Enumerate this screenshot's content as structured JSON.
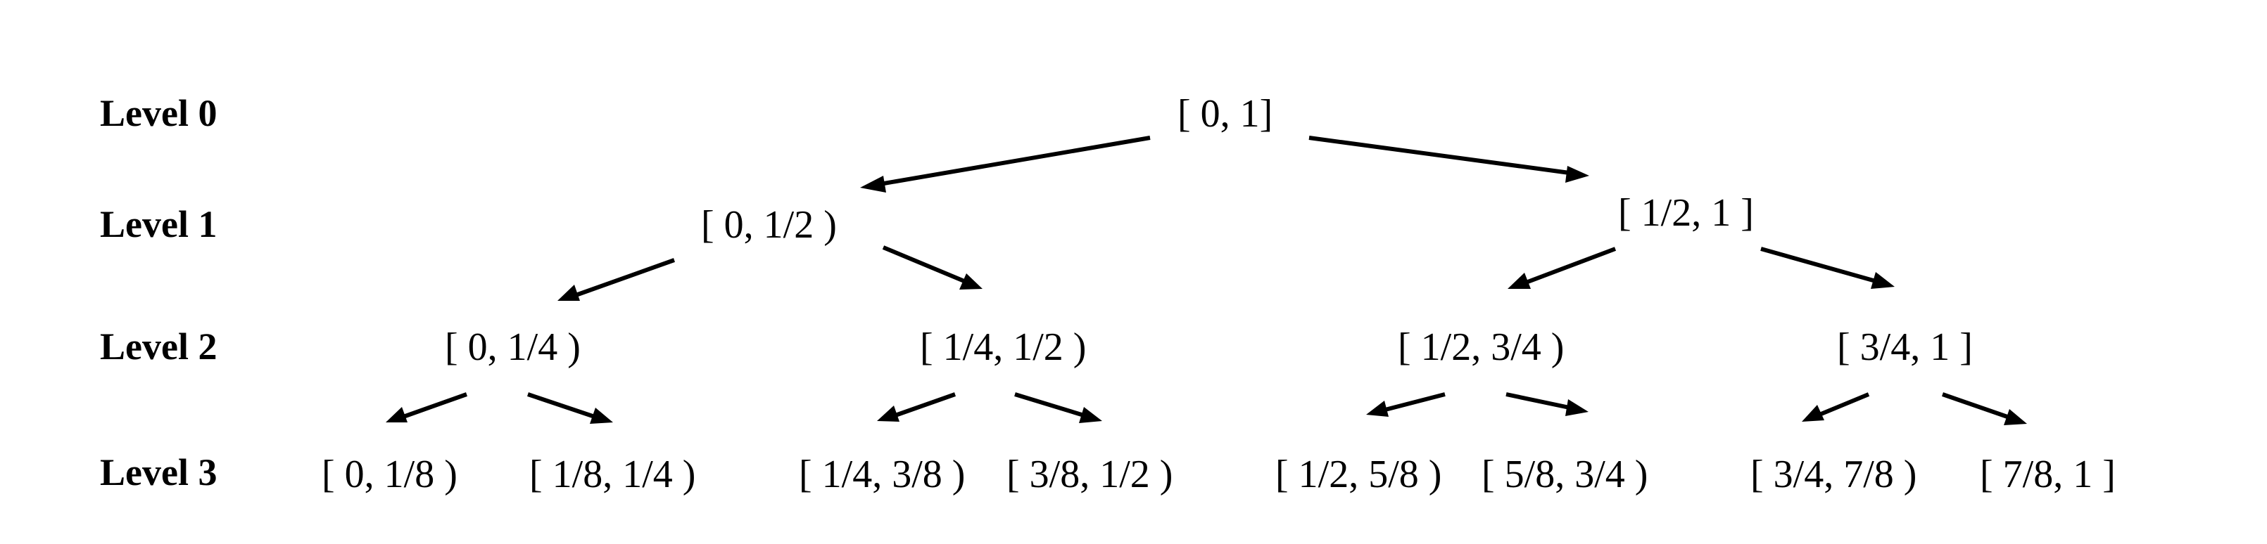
{
  "levels": [
    "Level 0",
    "Level 1",
    "Level 2",
    "Level 3"
  ],
  "nodes": [
    {
      "id": "n0",
      "level": 0,
      "label": "[ 0, 1]"
    },
    {
      "id": "n1a",
      "level": 1,
      "label": "[ 0, 1/2 )"
    },
    {
      "id": "n1b",
      "level": 1,
      "label": "[ 1/2, 1 ]"
    },
    {
      "id": "n2a",
      "level": 2,
      "label": "[ 0, 1/4 )"
    },
    {
      "id": "n2b",
      "level": 2,
      "label": "[ 1/4, 1/2 )"
    },
    {
      "id": "n2c",
      "level": 2,
      "label": "[ 1/2, 3/4 )"
    },
    {
      "id": "n2d",
      "level": 2,
      "label": "[ 3/4, 1 ]"
    },
    {
      "id": "n3a",
      "level": 3,
      "label": "[ 0, 1/8 )"
    },
    {
      "id": "n3b",
      "level": 3,
      "label": "[ 1/8, 1/4 )"
    },
    {
      "id": "n3c",
      "level": 3,
      "label": "[ 1/4, 3/8 )"
    },
    {
      "id": "n3d",
      "level": 3,
      "label": "[ 3/8, 1/2 )"
    },
    {
      "id": "n3e",
      "level": 3,
      "label": "[ 1/2, 5/8 )"
    },
    {
      "id": "n3f",
      "level": 3,
      "label": "[ 5/8, 3/4 )"
    },
    {
      "id": "n3g",
      "level": 3,
      "label": "[ 3/4, 7/8 )"
    },
    {
      "id": "n3h",
      "level": 3,
      "label": "[ 7/8, 1 ]"
    }
  ],
  "edges": [
    {
      "from": "n0",
      "to": "n1a"
    },
    {
      "from": "n0",
      "to": "n1b"
    },
    {
      "from": "n1a",
      "to": "n2a"
    },
    {
      "from": "n1a",
      "to": "n2b"
    },
    {
      "from": "n1b",
      "to": "n2c"
    },
    {
      "from": "n1b",
      "to": "n2d"
    },
    {
      "from": "n2a",
      "to": "n3a"
    },
    {
      "from": "n2a",
      "to": "n3b"
    },
    {
      "from": "n2b",
      "to": "n3c"
    },
    {
      "from": "n2b",
      "to": "n3d"
    },
    {
      "from": "n2c",
      "to": "n3e"
    },
    {
      "from": "n2c",
      "to": "n3f"
    },
    {
      "from": "n2d",
      "to": "n3g"
    },
    {
      "from": "n2d",
      "to": "n3h"
    }
  ]
}
